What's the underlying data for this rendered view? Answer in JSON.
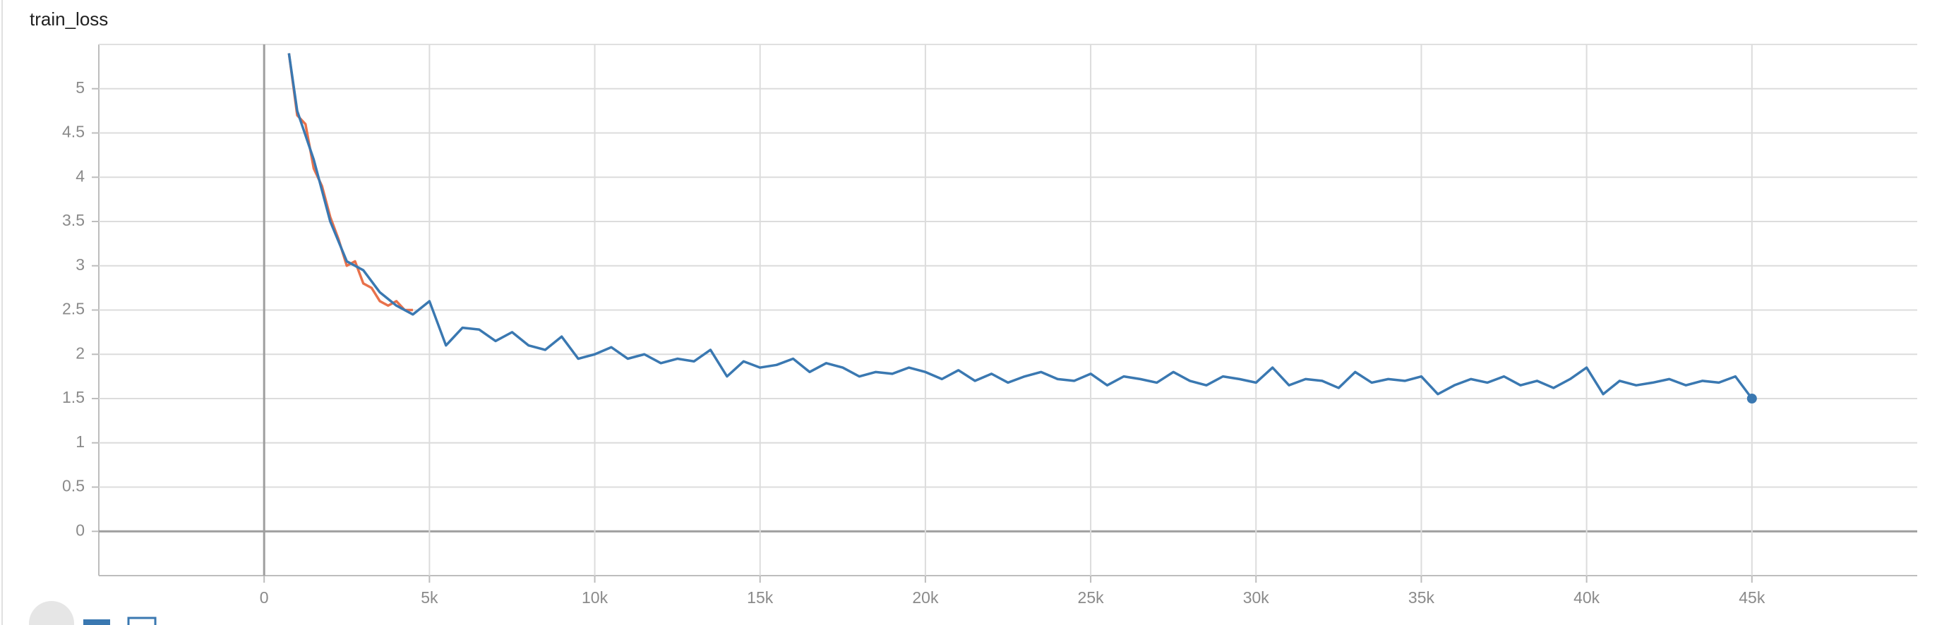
{
  "chart_data": {
    "type": "line",
    "title": "train_loss",
    "xlim": [
      -5000,
      50000
    ],
    "xticks": [
      0,
      {
        "value": 5000,
        "label": "5k"
      },
      {
        "value": 10000,
        "label": "10k"
      },
      {
        "value": 15000,
        "label": "15k"
      },
      {
        "value": 20000,
        "label": "20k"
      },
      {
        "value": 25000,
        "label": "25k"
      },
      {
        "value": 30000,
        "label": "30k"
      },
      {
        "value": 35000,
        "label": "35k"
      },
      {
        "value": 40000,
        "label": "40k"
      },
      {
        "value": 45000,
        "label": "45k"
      }
    ],
    "ylim": [
      -0.5,
      5.5
    ],
    "yticks": [
      0,
      0.5,
      1,
      1.5,
      2,
      2.5,
      3,
      3.5,
      4,
      4.5,
      5
    ],
    "grid": true,
    "series": [
      {
        "color": "#3a78b1",
        "end_dot": true,
        "x": [
          750,
          1000,
          1500,
          2000,
          2500,
          3000,
          3500,
          4000,
          4500,
          5000,
          5500,
          6000,
          6500,
          7000,
          7500,
          8000,
          8500,
          9000,
          9500,
          10000,
          10500,
          11000,
          11500,
          12000,
          12500,
          13000,
          13500,
          14000,
          14500,
          15000,
          15500,
          16000,
          16500,
          17000,
          17500,
          18000,
          18500,
          19000,
          19500,
          20000,
          20500,
          21000,
          21500,
          22000,
          22500,
          23000,
          23500,
          24000,
          24500,
          25000,
          25500,
          26000,
          26500,
          27000,
          27500,
          28000,
          28500,
          29000,
          29500,
          30000,
          30500,
          31000,
          31500,
          32000,
          32500,
          33000,
          33500,
          34000,
          34500,
          35000,
          35500,
          36000,
          36500,
          37000,
          37500,
          38000,
          38500,
          39000,
          39500,
          40000,
          40500,
          41000,
          41500,
          42000,
          42500,
          43000,
          43500,
          44000,
          44500,
          45000
        ],
        "values": [
          5.4,
          4.75,
          4.2,
          3.5,
          3.05,
          2.95,
          2.7,
          2.55,
          2.45,
          2.6,
          2.1,
          2.3,
          2.28,
          2.15,
          2.25,
          2.1,
          2.05,
          2.2,
          1.95,
          2.0,
          2.08,
          1.95,
          2.0,
          1.9,
          1.95,
          1.92,
          2.05,
          1.75,
          1.92,
          1.85,
          1.88,
          1.95,
          1.8,
          1.9,
          1.85,
          1.75,
          1.8,
          1.78,
          1.85,
          1.8,
          1.72,
          1.82,
          1.7,
          1.78,
          1.68,
          1.75,
          1.8,
          1.72,
          1.7,
          1.78,
          1.65,
          1.75,
          1.72,
          1.68,
          1.8,
          1.7,
          1.65,
          1.75,
          1.72,
          1.68,
          1.85,
          1.65,
          1.72,
          1.7,
          1.62,
          1.8,
          1.68,
          1.72,
          1.7,
          1.75,
          1.55,
          1.65,
          1.72,
          1.68,
          1.75,
          1.65,
          1.7,
          1.62,
          1.72,
          1.85,
          1.55,
          1.7,
          1.65,
          1.68,
          1.72,
          1.65,
          1.7,
          1.68,
          1.75,
          1.5
        ]
      },
      {
        "color": "#e8714b",
        "x": [
          750,
          1000,
          1250,
          1500,
          1750,
          2000,
          2250,
          2500,
          2750,
          3000,
          3250,
          3500,
          3750,
          4000,
          4250,
          4500
        ],
        "values": [
          5.4,
          4.7,
          4.6,
          4.1,
          3.9,
          3.55,
          3.3,
          3.0,
          3.05,
          2.8,
          2.75,
          2.6,
          2.55,
          2.6,
          2.5,
          2.5
        ]
      }
    ]
  }
}
